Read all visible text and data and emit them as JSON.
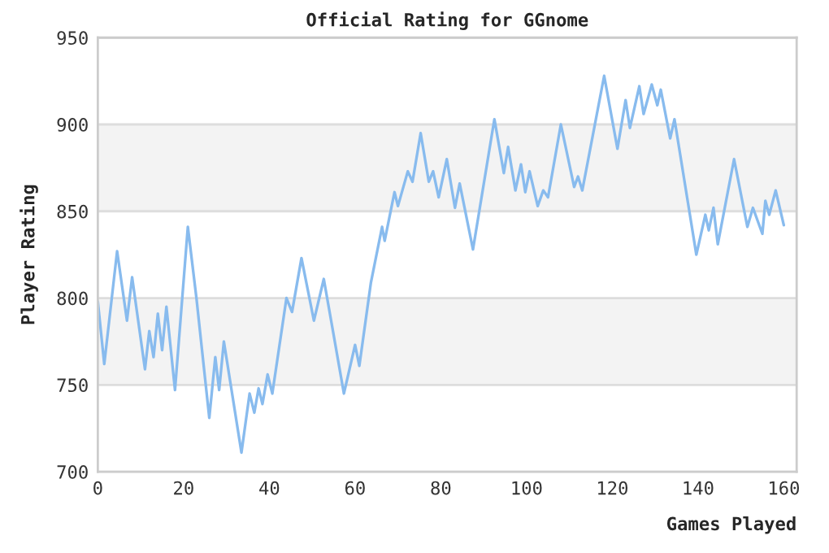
{
  "chart_data": {
    "type": "line",
    "title": "Official Rating for GGnome",
    "xlabel": "Games Played",
    "ylabel": "Player Rating",
    "xlim": [
      0,
      163
    ],
    "xticks": [
      0,
      20,
      40,
      60,
      80,
      100,
      120,
      140,
      160
    ],
    "ylim": [
      700,
      950
    ],
    "yticks": [
      700,
      750,
      800,
      850,
      900,
      950
    ],
    "grid": "y",
    "marker": "none",
    "line_style": "solid",
    "bands": [
      {
        "axis": "y",
        "from": 750,
        "to": 800,
        "color": "#f3f3f3"
      },
      {
        "axis": "y",
        "from": 850,
        "to": 900,
        "color": "#f3f3f3"
      }
    ],
    "series": [
      {
        "color": "#88bbee",
        "x": [
          0,
          1.5,
          4.5,
          6.8,
          8,
          11,
          12,
          13,
          14,
          15,
          16,
          18,
          21,
          23,
          26,
          27.4,
          28.3,
          29.4,
          33.5,
          35.4,
          36.5,
          37.5,
          38.4,
          39.6,
          40.7,
          44,
          45.3,
          47.5,
          50.4,
          52.7,
          54.7,
          57.4,
          60,
          61,
          63.7,
          66.3,
          66.9,
          69.2,
          70,
          72.3,
          73.4,
          75.3,
          77.2,
          78.2,
          79.5,
          81.4,
          83.3,
          84.4,
          87.5,
          92.5,
          94.7,
          95.7,
          97.4,
          98.7,
          99.7,
          100.7,
          102.6,
          103.9,
          105,
          108,
          111.1,
          112,
          113,
          118.1,
          121.2,
          123.1,
          124.1,
          126.3,
          127.3,
          129.2,
          130.5,
          131.3,
          133.5,
          134.5,
          139.6,
          141.7,
          142.5,
          143.6,
          144.6,
          148.4,
          151.5,
          152.8,
          155,
          155.7,
          156.6,
          158.1,
          160
        ],
        "values": [
          798,
          762,
          827,
          787,
          812,
          759,
          781,
          766,
          791,
          770,
          795,
          747,
          841,
          800,
          731,
          766,
          747,
          775,
          711,
          745,
          734,
          748,
          739,
          756,
          745,
          800,
          792,
          823,
          787,
          811,
          783,
          745,
          773,
          761,
          809,
          841,
          833,
          861,
          853,
          873,
          867,
          895,
          867,
          873,
          858,
          880,
          852,
          866,
          828,
          903,
          872,
          887,
          862,
          877,
          861,
          873,
          853,
          862,
          858,
          900,
          864,
          870,
          862,
          928,
          886,
          914,
          898,
          922,
          906,
          923,
          911,
          920,
          892,
          903,
          825,
          848,
          839,
          852,
          831,
          880,
          841,
          852,
          837,
          856,
          848,
          862,
          842
        ]
      }
    ]
  }
}
